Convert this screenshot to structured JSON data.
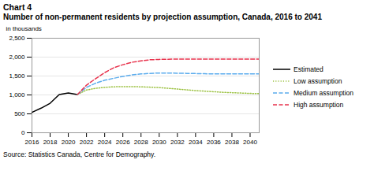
{
  "chart_data": {
    "type": "line",
    "title": "Chart 4",
    "subtitle": "Number of non-permanent residents by projection assumption, Canada, 2016 to 2041",
    "y_label": "in thousands",
    "source": "Source: Statistics Canada, Centre for Demography.",
    "xlim": [
      2016,
      2041
    ],
    "xticks": [
      2016,
      2018,
      2020,
      2022,
      2024,
      2026,
      2028,
      2030,
      2032,
      2034,
      2036,
      2038,
      2040
    ],
    "ylim": [
      0,
      2500
    ],
    "yticks": [
      0,
      500,
      {
        "value": 1000,
        "label": "1,000"
      },
      {
        "value": 1500,
        "label": "1,500"
      },
      {
        "value": 2000,
        "label": "2,000"
      },
      {
        "value": 2500,
        "label": "2,500"
      }
    ],
    "grid": true,
    "legend": "right",
    "series": [
      {
        "name": "Estimated",
        "color": "#000000",
        "line_style": "solid",
        "x": [
          2016,
          2017,
          2018,
          2019,
          2020,
          2021
        ],
        "values": [
          540,
          650,
          780,
          1010,
          1050,
          1010
        ]
      },
      {
        "name": "Low assumption",
        "color": "#9dc244",
        "line_style": "dotted",
        "x": [
          2021,
          2022,
          2023,
          2024,
          2025,
          2026,
          2027,
          2028,
          2029,
          2030,
          2031,
          2032,
          2033,
          2034,
          2035,
          2036,
          2037,
          2038,
          2039,
          2040,
          2041
        ],
        "values": [
          1010,
          1130,
          1175,
          1200,
          1215,
          1220,
          1220,
          1215,
          1205,
          1195,
          1175,
          1155,
          1135,
          1115,
          1100,
          1085,
          1070,
          1060,
          1050,
          1040,
          1035
        ]
      },
      {
        "name": "Medium assumption",
        "color": "#5baced",
        "line_style": "dashed",
        "x": [
          2021,
          2022,
          2023,
          2024,
          2025,
          2026,
          2027,
          2028,
          2029,
          2030,
          2031,
          2032,
          2033,
          2034,
          2035,
          2036,
          2037,
          2038,
          2039,
          2040,
          2041
        ],
        "values": [
          1010,
          1200,
          1310,
          1390,
          1440,
          1490,
          1530,
          1555,
          1570,
          1580,
          1580,
          1575,
          1570,
          1565,
          1560,
          1558,
          1558,
          1558,
          1558,
          1558,
          1558
        ]
      },
      {
        "name": "High assumption",
        "color": "#e8324c",
        "line_style": "dashed",
        "x": [
          2021,
          2022,
          2023,
          2024,
          2025,
          2026,
          2027,
          2028,
          2029,
          2030,
          2031,
          2032,
          2033,
          2034,
          2035,
          2036,
          2037,
          2038,
          2039,
          2040,
          2041
        ],
        "values": [
          1010,
          1260,
          1430,
          1590,
          1720,
          1800,
          1865,
          1900,
          1930,
          1940,
          1945,
          1948,
          1950,
          1950,
          1950,
          1950,
          1950,
          1950,
          1950,
          1950,
          1950
        ]
      }
    ]
  }
}
